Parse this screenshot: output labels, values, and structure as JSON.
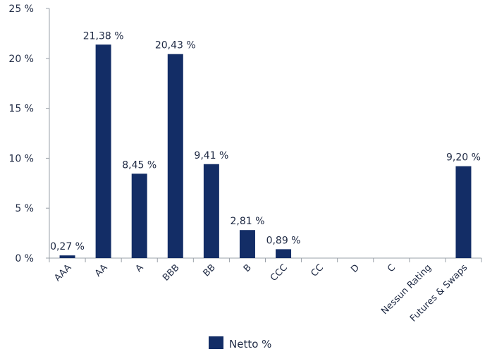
{
  "chart_data": {
    "type": "bar",
    "categories": [
      "AAA",
      "AA",
      "A",
      "BBB",
      "BB",
      "B",
      "CCC",
      "CC",
      "D",
      "C",
      "Nessun Rating",
      "Futures & Swaps"
    ],
    "series": [
      {
        "name": "Netto %",
        "values": [
          0.27,
          21.38,
          8.45,
          20.43,
          9.41,
          2.81,
          0.89,
          0,
          0,
          0,
          0,
          9.2
        ],
        "data_labels": [
          "0,27 %",
          "21,38 %",
          "8,45 %",
          "20,43 %",
          "9,41 %",
          "2,81 %",
          "0,89 %",
          "",
          "",
          "",
          "",
          "9,20 %"
        ],
        "color": "#132d66"
      }
    ],
    "ylim": [
      0,
      25
    ],
    "yticks": [
      0,
      5,
      10,
      15,
      20,
      25
    ],
    "ytick_labels": [
      "0 %",
      "5 %",
      "10 %",
      "15 %",
      "20 %",
      "25 %"
    ],
    "grid": false,
    "legend": {
      "position": "bottom-center",
      "label": "Netto %"
    },
    "title": "",
    "xlabel": "",
    "ylabel": ""
  }
}
